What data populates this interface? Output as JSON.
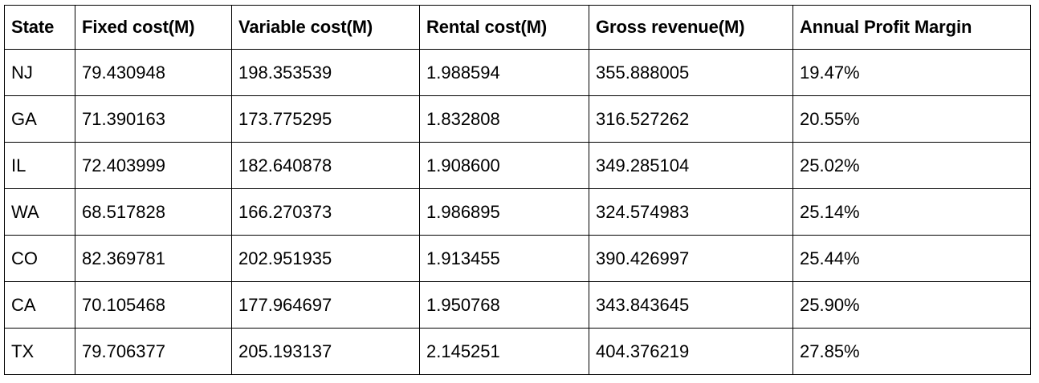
{
  "table": {
    "headers": [
      "State",
      "Fixed cost(M)",
      "Variable cost(M)",
      "Rental cost(M)",
      "Gross revenue(M)",
      "Annual Profit Margin"
    ],
    "rows": [
      [
        "NJ",
        "79.430948",
        "198.353539",
        "1.988594",
        "355.888005",
        "19.47%"
      ],
      [
        "GA",
        "71.390163",
        "173.775295",
        "1.832808",
        "316.527262",
        "20.55%"
      ],
      [
        "IL",
        "72.403999",
        "182.640878",
        "1.908600",
        "349.285104",
        "25.02%"
      ],
      [
        "WA",
        "68.517828",
        "166.270373",
        "1.986895",
        "324.574983",
        "25.14%"
      ],
      [
        "CO",
        "82.369781",
        "202.951935",
        "1.913455",
        "390.426997",
        "25.44%"
      ],
      [
        "CA",
        "70.105468",
        "177.964697",
        "1.950768",
        "343.843645",
        "25.90%"
      ],
      [
        "TX",
        "79.706377",
        "205.193137",
        "2.145251",
        "404.376219",
        "27.85%"
      ]
    ]
  }
}
